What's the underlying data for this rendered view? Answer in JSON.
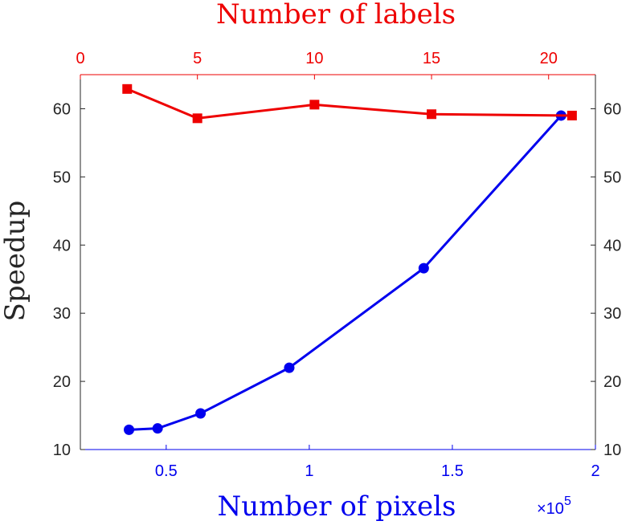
{
  "chart_data": {
    "type": "line",
    "ylabel": "Speedup",
    "ylim": [
      10,
      65
    ],
    "yticks": [
      10,
      20,
      30,
      40,
      50,
      60
    ],
    "grid": false,
    "colors": {
      "pixels": "#0000ee",
      "labels": "#ee0000",
      "axis": "#262626"
    },
    "bottom_axis": {
      "label": "Number of pixels",
      "exponent_label": "×10",
      "exponent": "5",
      "xlim": [
        0.2,
        2.0
      ],
      "ticks": [
        0.5,
        1,
        1.5,
        2
      ],
      "tick_labels": [
        "0.5",
        "1",
        "1.5",
        "2"
      ]
    },
    "top_axis": {
      "label": "Number of labels",
      "xlim": [
        0,
        22
      ],
      "ticks": [
        0,
        5,
        10,
        15,
        20
      ],
      "tick_labels": [
        "0",
        "5",
        "10",
        "15",
        "20"
      ]
    },
    "series": [
      {
        "axis": "bottom",
        "color": "#0000ee",
        "marker": "circle",
        "x": [
          0.37,
          0.47,
          0.62,
          0.93,
          1.4,
          1.88
        ],
        "y": [
          12.9,
          13.1,
          15.3,
          22.0,
          36.6,
          59.0
        ]
      },
      {
        "axis": "top",
        "color": "#ee0000",
        "marker": "square",
        "x": [
          2,
          5,
          10,
          15,
          21
        ],
        "y": [
          62.9,
          58.6,
          60.6,
          59.2,
          59.0
        ]
      }
    ]
  }
}
